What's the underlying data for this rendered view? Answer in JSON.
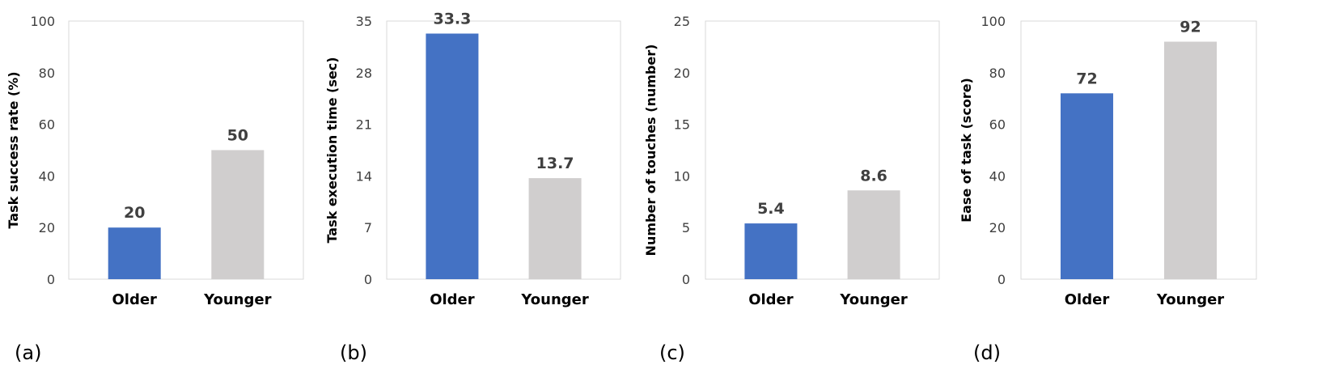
{
  "chart_data": [
    {
      "type": "bar",
      "panel_label": "(a)",
      "categories": [
        "Older",
        "Younger"
      ],
      "values": [
        20,
        50
      ],
      "data_labels": [
        "20",
        "50"
      ],
      "ylabel": "Task success rate (%)",
      "ylim": [
        0,
        100
      ],
      "yticks": [
        0,
        20,
        40,
        60,
        80,
        100
      ],
      "bar_colors": [
        "#4472c4",
        "#d0cece"
      ],
      "grid": false
    },
    {
      "type": "bar",
      "panel_label": "(b)",
      "categories": [
        "Older",
        "Younger"
      ],
      "values": [
        33.3,
        13.7
      ],
      "data_labels": [
        "33.3",
        "13.7"
      ],
      "ylabel": "Task execution time (sec)",
      "ylim": [
        0,
        35
      ],
      "yticks": [
        0,
        7,
        14,
        21,
        28,
        35
      ],
      "bar_colors": [
        "#4472c4",
        "#d0cece"
      ],
      "grid": false
    },
    {
      "type": "bar",
      "panel_label": "(c)",
      "categories": [
        "Older",
        "Younger"
      ],
      "values": [
        5.4,
        8.6
      ],
      "data_labels": [
        "5.4",
        "8.6"
      ],
      "ylabel": "Number of touches (number)",
      "ylim": [
        0,
        25
      ],
      "yticks": [
        0,
        5,
        10,
        15,
        20,
        25
      ],
      "bar_colors": [
        "#4472c4",
        "#d0cece"
      ],
      "grid": false
    },
    {
      "type": "bar",
      "panel_label": "(d)",
      "categories": [
        "Older",
        "Younger"
      ],
      "values": [
        72,
        92
      ],
      "data_labels": [
        "72",
        "92"
      ],
      "ylabel": "Ease of task (score)",
      "ylim": [
        0,
        100
      ],
      "yticks": [
        0,
        20,
        40,
        60,
        80,
        100
      ],
      "bar_colors": [
        "#4472c4",
        "#d0cece"
      ],
      "grid": false
    }
  ]
}
